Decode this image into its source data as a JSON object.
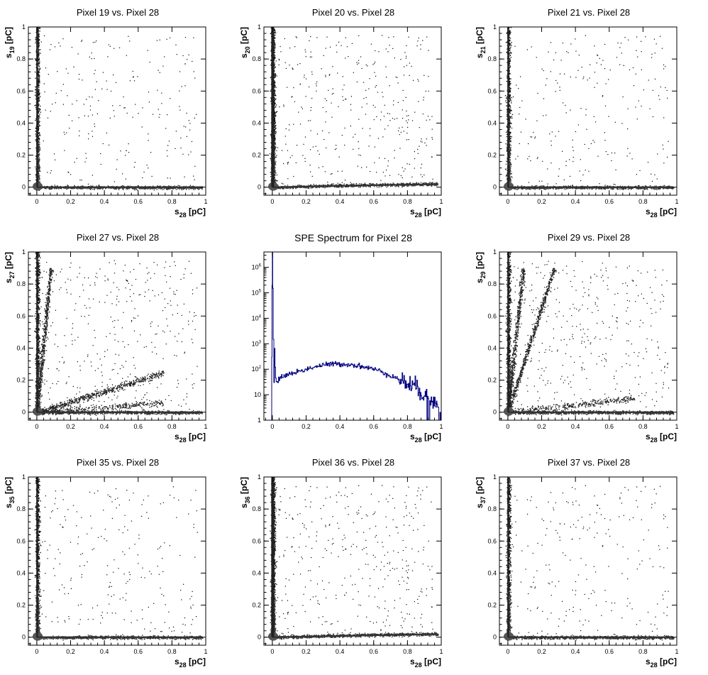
{
  "figure": {
    "panels": [
      {
        "title": "Pixel 19 vs. Pixel 28",
        "ylabel_main": "s",
        "ylabel_sub": "19"
      },
      {
        "title": "Pixel 20 vs. Pixel 28",
        "ylabel_main": "s",
        "ylabel_sub": "20"
      },
      {
        "title": "Pixel 21 vs. Pixel 28",
        "ylabel_main": "s",
        "ylabel_sub": "21"
      },
      {
        "title": "Pixel 27 vs. Pixel 28",
        "ylabel_main": "s",
        "ylabel_sub": "27"
      },
      {
        "title": "SPE Spectrum for Pixel 28",
        "ylabel_main": "",
        "ylabel_sub": ""
      },
      {
        "title": "Pixel 29 vs. Pixel 28",
        "ylabel_main": "s",
        "ylabel_sub": "29"
      },
      {
        "title": "Pixel 35 vs. Pixel 28",
        "ylabel_main": "s",
        "ylabel_sub": "35"
      },
      {
        "title": "Pixel 36 vs. Pixel 28",
        "ylabel_main": "s",
        "ylabel_sub": "36"
      },
      {
        "title": "Pixel 37 vs. Pixel 28",
        "ylabel_main": "s",
        "ylabel_sub": "37"
      }
    ],
    "xlabel_main": "s",
    "xlabel_sub": "28",
    "unit": "[pC]"
  },
  "chart_data": [
    {
      "type": "heatmap",
      "title": "Pixel 19 vs. Pixel 28",
      "xlabel": "s28 [pC]",
      "ylabel": "s19 [pC]",
      "xlim": [
        -0.05,
        1.0
      ],
      "ylim": [
        -0.05,
        1.0
      ],
      "xticks": [
        "0",
        "0.2",
        "0.4",
        "0.6",
        "0.8",
        "1"
      ],
      "yticks": [
        "0",
        "0.2",
        "0.4",
        "0.6",
        "0.8",
        "1"
      ],
      "bands": [
        {
          "slope": 0,
          "density": "high"
        },
        {
          "slope": "vertical",
          "density": "high"
        }
      ],
      "scatter_density": "low"
    },
    {
      "type": "heatmap",
      "title": "Pixel 20 vs. Pixel 28",
      "xlabel": "s28 [pC]",
      "ylabel": "s20 [pC]",
      "xlim": [
        -0.05,
        1.0
      ],
      "ylim": [
        -0.05,
        1.0
      ],
      "xticks": [
        "0",
        "0.2",
        "0.4",
        "0.6",
        "0.8",
        "1"
      ],
      "yticks": [
        "0",
        "0.2",
        "0.4",
        "0.6",
        "0.8",
        "1"
      ],
      "bands": [
        {
          "slope": 0.02,
          "density": "high"
        },
        {
          "slope": "vertical",
          "density": "very high"
        }
      ],
      "scatter_density": "medium"
    },
    {
      "type": "heatmap",
      "title": "Pixel 21 vs. Pixel 28",
      "xlabel": "s28 [pC]",
      "ylabel": "s21 [pC]",
      "xlim": [
        -0.05,
        1.0
      ],
      "ylim": [
        -0.05,
        1.0
      ],
      "xticks": [
        "0",
        "0.2",
        "0.4",
        "0.6",
        "0.8",
        "1"
      ],
      "yticks": [
        "0",
        "0.2",
        "0.4",
        "0.6",
        "0.8",
        "1"
      ],
      "bands": [
        {
          "slope": 0,
          "density": "high"
        },
        {
          "slope": "vertical",
          "density": "high"
        }
      ],
      "scatter_density": "low"
    },
    {
      "type": "heatmap",
      "title": "Pixel 27 vs. Pixel 28",
      "xlabel": "s28 [pC]",
      "ylabel": "s27 [pC]",
      "xlim": [
        -0.05,
        1.0
      ],
      "ylim": [
        -0.05,
        1.0
      ],
      "xticks": [
        "0",
        "0.2",
        "0.4",
        "0.6",
        "0.8",
        "1"
      ],
      "yticks": [
        "0",
        "0.2",
        "0.4",
        "0.6",
        "0.8",
        "1"
      ],
      "bands": [
        {
          "slope": 0,
          "density": "high"
        },
        {
          "slope": "vertical",
          "density": "high"
        },
        {
          "slope": 0.33,
          "density": "high"
        },
        {
          "slope": 0.08,
          "density": "medium"
        },
        {
          "slope": 11,
          "density": "high"
        }
      ],
      "scatter_density": "medium"
    },
    {
      "type": "line",
      "title": "SPE Spectrum for Pixel 28",
      "xlabel": "s28 [pC]",
      "ylabel": "",
      "xlim": [
        -0.05,
        1.0
      ],
      "ylim": [
        1,
        4000000
      ],
      "yscale": "log",
      "xticks": [
        "0",
        "0.2",
        "0.4",
        "0.6",
        "0.8",
        "1"
      ],
      "yticks": [
        "1",
        "10",
        "10^2",
        "10^3",
        "10^4",
        "10^5",
        "10^6"
      ],
      "series": [
        {
          "color": "#000080",
          "x": [
            -0.01,
            0.0,
            0.01,
            0.02,
            0.05,
            0.1,
            0.15,
            0.2,
            0.25,
            0.3,
            0.35,
            0.4,
            0.45,
            0.5,
            0.55,
            0.6,
            0.65,
            0.7,
            0.75,
            0.8,
            0.85,
            0.9,
            0.95,
            1.0
          ],
          "y": [
            1,
            4000000,
            1000,
            30,
            50,
            65,
            80,
            100,
            125,
            145,
            160,
            160,
            155,
            140,
            120,
            100,
            80,
            55,
            40,
            28,
            18,
            10,
            6,
            3
          ]
        }
      ]
    },
    {
      "type": "heatmap",
      "title": "Pixel 29 vs. Pixel 28",
      "xlabel": "s28 [pC]",
      "ylabel": "s29 [pC]",
      "xlim": [
        -0.05,
        1.0
      ],
      "ylim": [
        -0.05,
        1.0
      ],
      "xticks": [
        "0",
        "0.2",
        "0.4",
        "0.6",
        "0.8",
        "1"
      ],
      "yticks": [
        "0",
        "0.2",
        "0.4",
        "0.6",
        "0.8",
        "1"
      ],
      "bands": [
        {
          "slope": 0,
          "density": "high"
        },
        {
          "slope": "vertical",
          "density": "high"
        },
        {
          "slope": 10,
          "density": "high"
        },
        {
          "slope": 3.3,
          "density": "high"
        },
        {
          "slope": 0.12,
          "density": "medium"
        }
      ],
      "scatter_density": "medium"
    },
    {
      "type": "heatmap",
      "title": "Pixel 35 vs. Pixel 28",
      "xlabel": "s28 [pC]",
      "ylabel": "s35 [pC]",
      "xlim": [
        -0.05,
        1.0
      ],
      "ylim": [
        -0.05,
        1.0
      ],
      "xticks": [
        "0",
        "0.2",
        "0.4",
        "0.6",
        "0.8",
        "1"
      ],
      "yticks": [
        "0",
        "0.2",
        "0.4",
        "0.6",
        "0.8",
        "1"
      ],
      "bands": [
        {
          "slope": 0,
          "density": "high"
        },
        {
          "slope": "vertical",
          "density": "high"
        }
      ],
      "scatter_density": "low"
    },
    {
      "type": "heatmap",
      "title": "Pixel 36 vs. Pixel 28",
      "xlabel": "s28 [pC]",
      "ylabel": "s36 [pC]",
      "xlim": [
        -0.05,
        1.0
      ],
      "ylim": [
        -0.05,
        1.0
      ],
      "xticks": [
        "0",
        "0.2",
        "0.4",
        "0.6",
        "0.8",
        "1"
      ],
      "yticks": [
        "0",
        "0.2",
        "0.4",
        "0.6",
        "0.8",
        "1"
      ],
      "bands": [
        {
          "slope": 0.02,
          "density": "high"
        },
        {
          "slope": "vertical",
          "density": "very high"
        }
      ],
      "scatter_density": "medium"
    },
    {
      "type": "heatmap",
      "title": "Pixel 37 vs. Pixel 28",
      "xlabel": "s28 [pC]",
      "ylabel": "s37 [pC]",
      "xlim": [
        -0.05,
        1.0
      ],
      "ylim": [
        -0.05,
        1.0
      ],
      "xticks": [
        "0",
        "0.2",
        "0.4",
        "0.6",
        "0.8",
        "1"
      ],
      "yticks": [
        "0",
        "0.2",
        "0.4",
        "0.6",
        "0.8",
        "1"
      ],
      "bands": [
        {
          "slope": 0,
          "density": "high"
        },
        {
          "slope": "vertical",
          "density": "high"
        }
      ],
      "scatter_density": "low"
    }
  ]
}
